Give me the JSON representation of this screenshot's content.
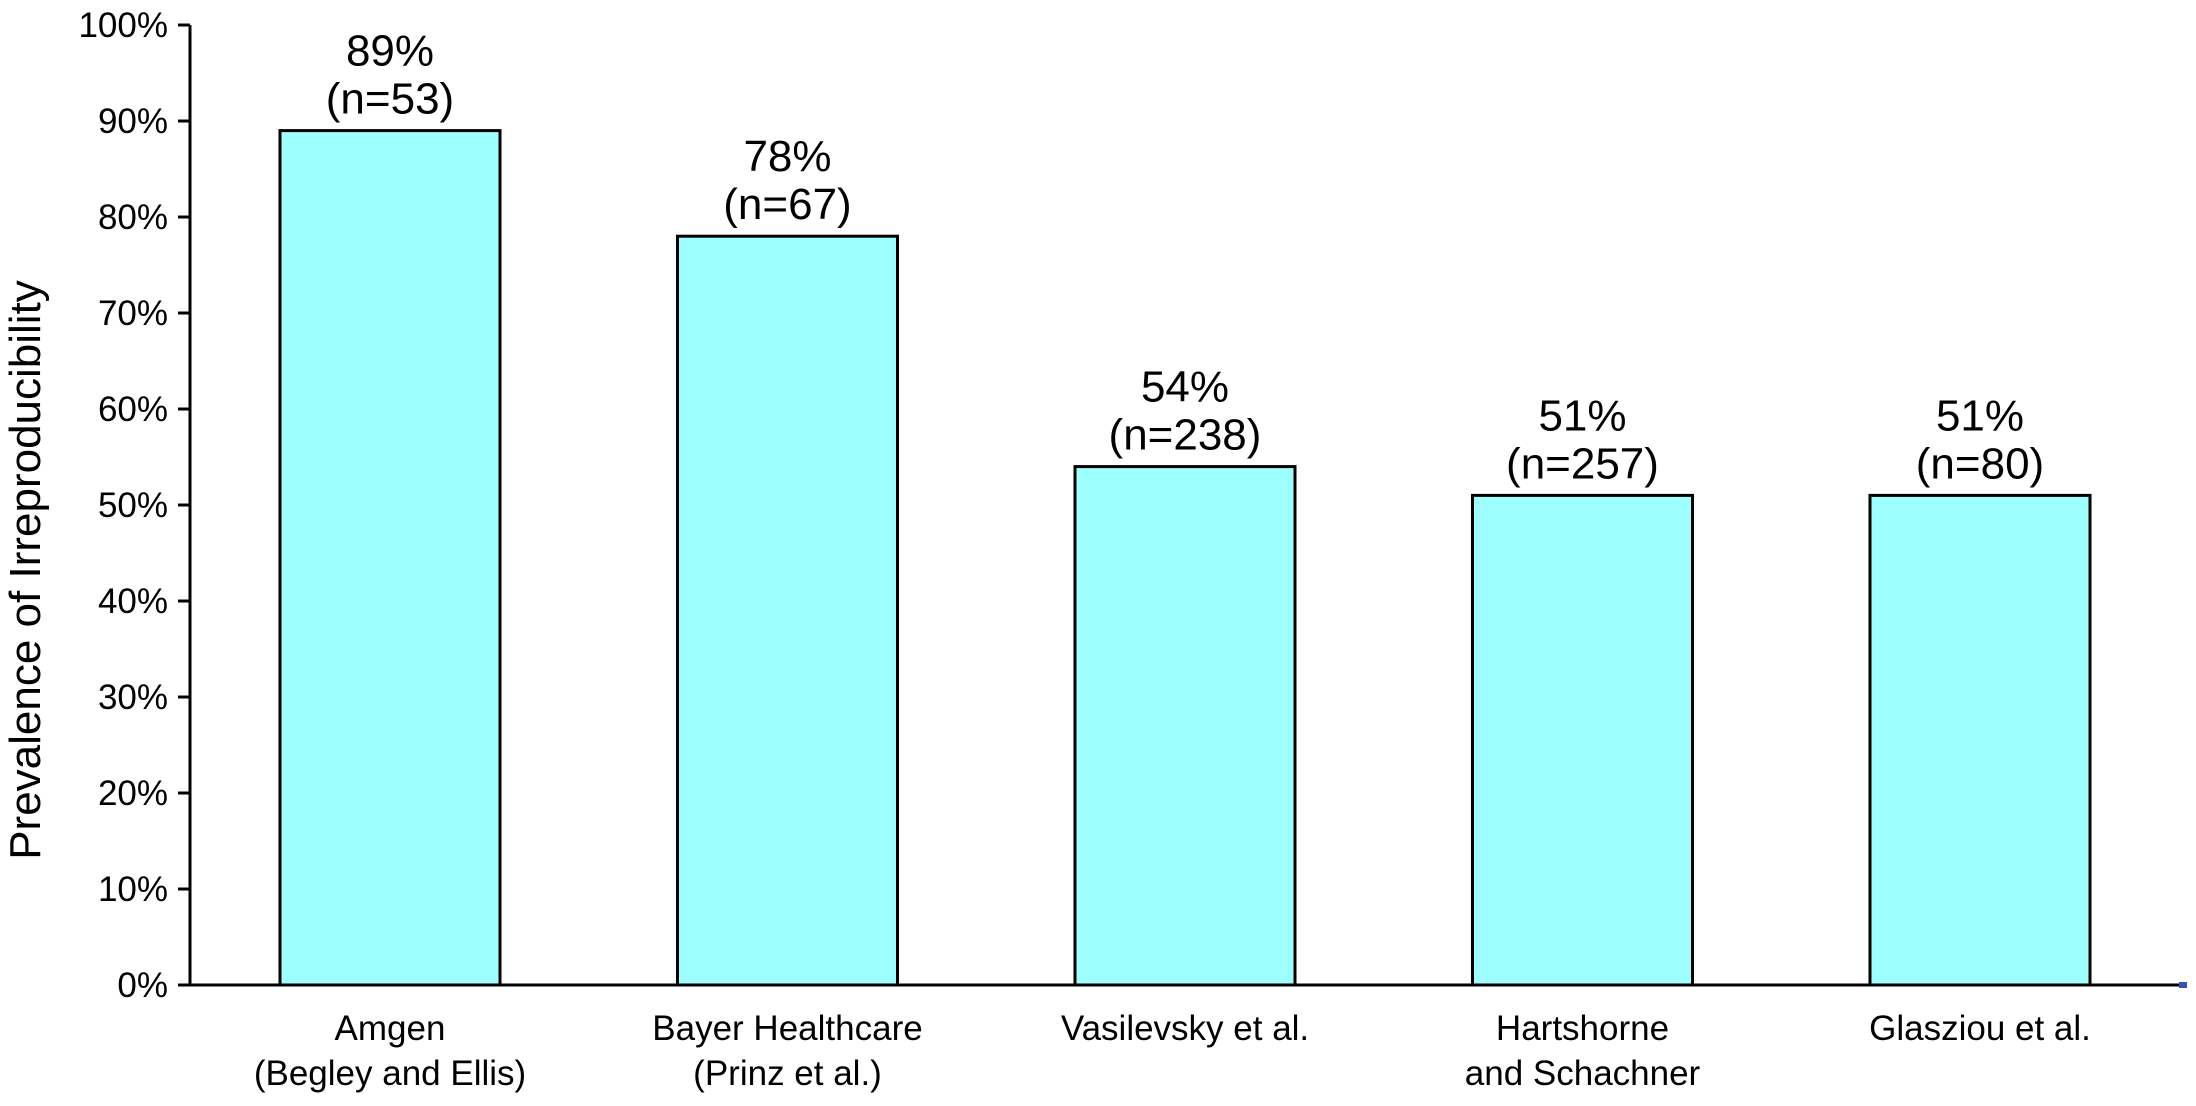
{
  "chart_data": {
    "type": "bar",
    "title": "",
    "xlabel": "",
    "ylabel": "Prevalence of Irreproducibility",
    "ylim": [
      0,
      100
    ],
    "y_ticks": [
      "0%",
      "10%",
      "20%",
      "30%",
      "40%",
      "50%",
      "60%",
      "70%",
      "80%",
      "90%",
      "100%"
    ],
    "grid": false,
    "legend": "none",
    "bar_color": "#9fffff",
    "bar_stroke": "#000000",
    "categories": [
      [
        "Amgen",
        "(Begley and Ellis)"
      ],
      [
        "Bayer Healthcare",
        "(Prinz et al.)"
      ],
      [
        "Vasilevsky et al."
      ],
      [
        "Hartshorne",
        "and Schachner"
      ],
      [
        "Glasziou et al."
      ]
    ],
    "values": [
      89,
      78,
      54,
      51,
      51
    ],
    "value_labels": [
      "89%",
      "78%",
      "54%",
      "51%",
      "51%"
    ],
    "n_labels": [
      "(n=53)",
      "(n=67)",
      "(n=238)",
      "(n=257)",
      "(n=80)"
    ]
  }
}
